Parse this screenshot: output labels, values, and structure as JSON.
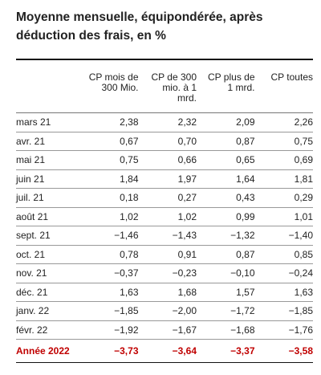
{
  "title": "Moyenne mensuelle, équipondérée, après déduction des frais, en %",
  "chart_data": {
    "type": "table",
    "title": "Moyenne mensuelle, équipondérée, après déduction des frais, en %",
    "columns": [
      "CP mois de 300 Mio.",
      "CP de 300 mio. à 1 mrd.",
      "CP plus de 1 mrd.",
      "CP toutes"
    ],
    "rows": [
      {
        "label": "mars 21",
        "values": [
          "2,38",
          "2,32",
          "2,09",
          "2,26"
        ]
      },
      {
        "label": "avr. 21",
        "values": [
          "0,67",
          "0,70",
          "0,87",
          "0,75"
        ]
      },
      {
        "label": "mai 21",
        "values": [
          "0,75",
          "0,66",
          "0,65",
          "0,69"
        ]
      },
      {
        "label": "juin 21",
        "values": [
          "1,84",
          "1,97",
          "1,64",
          "1,81"
        ]
      },
      {
        "label": "juil. 21",
        "values": [
          "0,18",
          "0,27",
          "0,43",
          "0,29"
        ]
      },
      {
        "label": "août 21",
        "values": [
          "1,02",
          "1,02",
          "0,99",
          "1,01"
        ]
      },
      {
        "label": "sept. 21",
        "values": [
          "−1,46",
          "−1,43",
          "−1,32",
          "−1,40"
        ]
      },
      {
        "label": "oct. 21",
        "values": [
          "0,78",
          "0,91",
          "0,87",
          "0,85"
        ]
      },
      {
        "label": "nov. 21",
        "values": [
          "−0,37",
          "−0,23",
          "−0,10",
          "−0,24"
        ]
      },
      {
        "label": "déc. 21",
        "values": [
          "1,63",
          "1,68",
          "1,57",
          "1,63"
        ]
      },
      {
        "label": "janv. 22",
        "values": [
          "−1,85",
          "−2,00",
          "−1,72",
          "−1,85"
        ]
      },
      {
        "label": "févr. 22",
        "values": [
          "−1,92",
          "−1,67",
          "−1,68",
          "−1,76"
        ]
      }
    ],
    "total": {
      "label": "Année 2022",
      "values": [
        "−3,73",
        "−3,64",
        "−3,37",
        "−3,58"
      ]
    },
    "total_color": "#c00000"
  }
}
